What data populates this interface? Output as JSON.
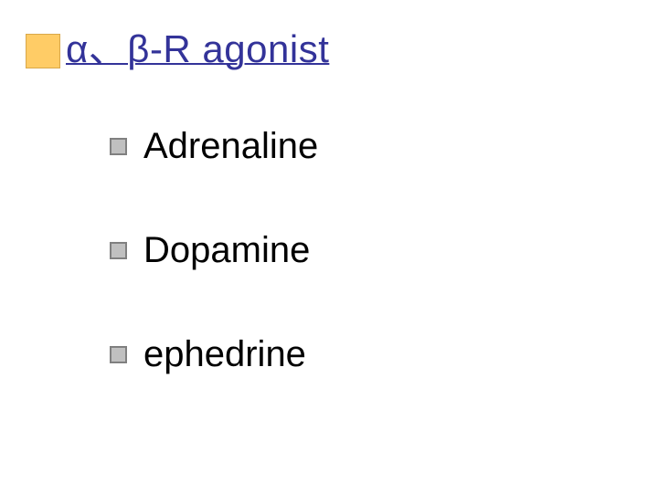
{
  "slide": {
    "title": "α、β-R agonist",
    "title_color": "#333399",
    "title_underline": true,
    "title_marker": {
      "fill": "#ffcc66",
      "border": "#d9a84a"
    },
    "bullet_style": {
      "fill": "#c0c0c0",
      "border": "#808080",
      "size": 15
    },
    "items": [
      {
        "label": "Adrenaline"
      },
      {
        "label": "Dopamine"
      },
      {
        "label": "ephedrine"
      }
    ],
    "background_color": "#ffffff",
    "title_fontsize": 42,
    "item_fontsize": 40,
    "font_family": "Comic Sans MS"
  }
}
